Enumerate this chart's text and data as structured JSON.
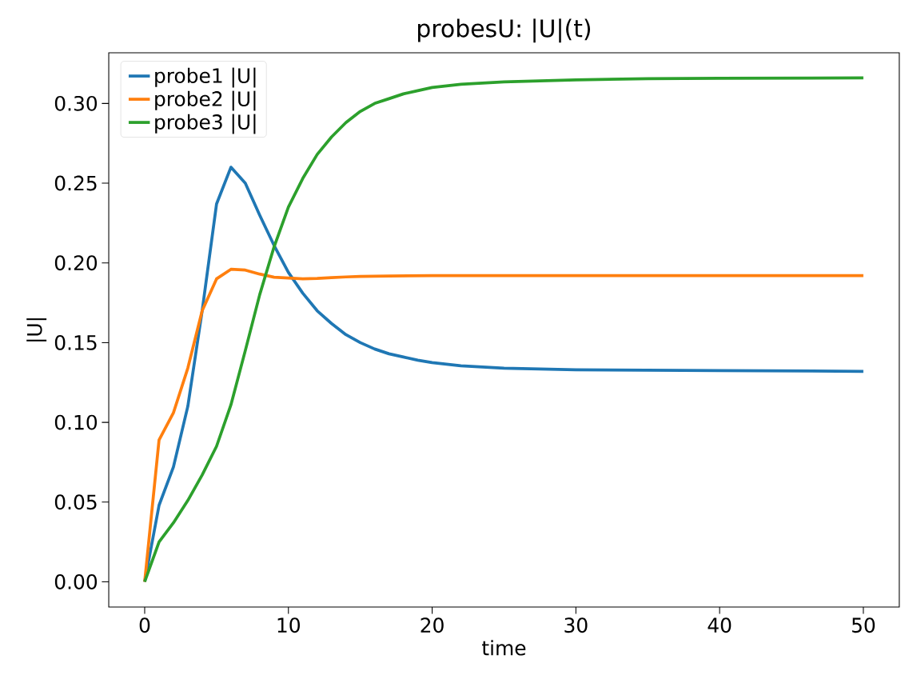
{
  "chart_data": {
    "type": "line",
    "title": "probesU: |U|(t)",
    "xlabel": "time",
    "ylabel": "|U|",
    "xlim": [
      -2.5,
      52.5
    ],
    "ylim": [
      -0.0158,
      0.3318
    ],
    "xticks": [
      0,
      10,
      20,
      30,
      40,
      50
    ],
    "yticks": [
      {
        "value": 0,
        "label": "0.00"
      },
      {
        "value": 0.05,
        "label": "0.05"
      },
      {
        "value": 0.1,
        "label": "0.10"
      },
      {
        "value": 0.15,
        "label": "0.15"
      },
      {
        "value": 0.2,
        "label": "0.20"
      },
      {
        "value": 0.25,
        "label": "0.25"
      },
      {
        "value": 0.3,
        "label": "0.30"
      }
    ],
    "legend": "top left",
    "series": [
      {
        "name": "probe1 |U|",
        "color": "#1f77b4",
        "x": [
          0,
          1,
          2,
          3,
          4,
          5,
          6,
          7,
          8,
          9,
          10,
          11,
          12,
          13,
          14,
          15,
          16,
          17,
          18,
          19,
          20,
          22,
          25,
          30,
          40,
          50
        ],
        "values": [
          0,
          0.048,
          0.072,
          0.11,
          0.17,
          0.237,
          0.26,
          0.25,
          0.23,
          0.211,
          0.194,
          0.181,
          0.17,
          0.162,
          0.155,
          0.15,
          0.146,
          0.143,
          0.141,
          0.139,
          0.1375,
          0.1355,
          0.134,
          0.133,
          0.1325,
          0.132
        ]
      },
      {
        "name": "probe2 |U|",
        "color": "#ff7f0e",
        "x": [
          0,
          1,
          2,
          3,
          4,
          5,
          6,
          7,
          8,
          9,
          10,
          11,
          12,
          13,
          14,
          15,
          17,
          20,
          50
        ],
        "values": [
          0,
          0.089,
          0.106,
          0.134,
          0.17,
          0.19,
          0.196,
          0.1955,
          0.193,
          0.191,
          0.1905,
          0.19,
          0.1903,
          0.1908,
          0.1912,
          0.1915,
          0.1918,
          0.192,
          0.192
        ]
      },
      {
        "name": "probe3 |U|",
        "color": "#2ca02c",
        "x": [
          0,
          1,
          2,
          3,
          4,
          5,
          6,
          7,
          8,
          9,
          10,
          11,
          12,
          13,
          14,
          15,
          16,
          17,
          18,
          19,
          20,
          21,
          22,
          23,
          24,
          25,
          27,
          30,
          35,
          40,
          50
        ],
        "values": [
          0,
          0.025,
          0.037,
          0.051,
          0.067,
          0.085,
          0.111,
          0.145,
          0.18,
          0.21,
          0.235,
          0.253,
          0.268,
          0.279,
          0.288,
          0.295,
          0.3,
          0.303,
          0.306,
          0.308,
          0.31,
          0.311,
          0.312,
          0.3125,
          0.313,
          0.3135,
          0.314,
          0.3148,
          0.3155,
          0.3158,
          0.316
        ]
      }
    ]
  }
}
